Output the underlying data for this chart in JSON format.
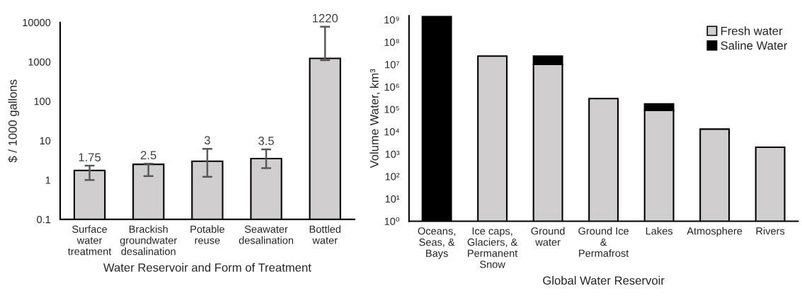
{
  "chart_data": [
    {
      "type": "bar",
      "xlabel": "Water Reservoir and Form of Treatment",
      "ylabel": "$ / 1000 gallons",
      "categories": [
        "Surface\nwater\ntreatment",
        "Brackish\ngroundwater\ndesalination",
        "Potable\nreuse",
        "Seawater\ndesalination",
        "Bottled\nwater"
      ],
      "values": [
        1.75,
        2.5,
        3,
        3.5,
        1220
      ],
      "errors": [
        [
          1.0,
          2.3
        ],
        [
          1.25,
          2.6
        ],
        [
          1.2,
          6.2
        ],
        [
          2.0,
          6.0
        ],
        [
          1100,
          7800
        ]
      ],
      "color": "#d0cece",
      "data_labels": true,
      "log": "y",
      "ylim": [
        0.1,
        10000
      ],
      "yticks": [
        0.1,
        1,
        10,
        100,
        1000,
        10000
      ],
      "grid": false,
      "legend": false
    },
    {
      "type": "bar",
      "xlabel": "Global Water Reservoir",
      "ylabel": "Volume Water, km³",
      "categories": [
        "Oceans,\nSeas, &\nBays",
        "Ice caps,\nGlaciers, &\nPermanent\nSnow",
        "Ground\nwater",
        "Ground Ice\n&\nPermafrost",
        "Lakes",
        "Atmosphere",
        "Rivers"
      ],
      "series": [
        {
          "name": "Fresh water",
          "color": "#d0cece",
          "values": [
            null,
            23600000,
            10000000,
            300000,
            91000,
            13000,
            2000
          ]
        },
        {
          "name": "Saline Water",
          "color": "#000000",
          "values": [
            1390000000,
            null,
            13600000,
            null,
            83000,
            null,
            null
          ]
        }
      ],
      "stacked": true,
      "log": "y",
      "ylim": [
        1,
        1500000000
      ],
      "yticks": [
        {
          "value": 1,
          "label": "10⁰"
        },
        {
          "value": 10,
          "label": "10¹"
        },
        {
          "value": 100,
          "label": "10²"
        },
        {
          "value": 1000,
          "label": "10³"
        },
        {
          "value": 10000,
          "label": "10⁴"
        },
        {
          "value": 100000,
          "label": "10⁵"
        },
        {
          "value": 1000000,
          "label": "10⁶"
        },
        {
          "value": 10000000,
          "label": "10⁷"
        },
        {
          "value": 100000000,
          "label": "10⁸"
        },
        {
          "value": 1000000000,
          "label": "10⁹"
        }
      ],
      "grid": false,
      "legend": "top right"
    }
  ]
}
